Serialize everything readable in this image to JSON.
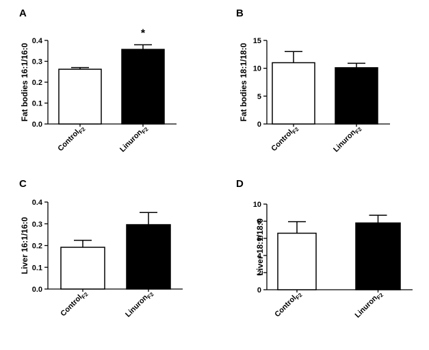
{
  "chart_data": [
    {
      "panel": "A",
      "type": "bar",
      "ylabel": "Fat bodies 16:1/16:0",
      "categories": [
        "Control",
        "Linuron"
      ],
      "category_subscript": "F2",
      "ylim": [
        0,
        0.4
      ],
      "yticks": [
        "0.0",
        "0.1",
        "0.2",
        "0.3",
        "0.4"
      ],
      "series": [
        {
          "values": [
            0.262,
            0.357
          ],
          "errors": [
            0.008,
            0.022
          ],
          "fills": [
            "#ffffff",
            "#000000"
          ]
        }
      ],
      "annotations": [
        {
          "category": "Linuron",
          "text": "*"
        }
      ]
    },
    {
      "panel": "B",
      "type": "bar",
      "ylabel": "Fat bodies 18:1/18:0",
      "categories": [
        "Control",
        "Linuron"
      ],
      "category_subscript": "F2",
      "ylim": [
        0,
        15
      ],
      "yticks": [
        "0",
        "5",
        "10",
        "15"
      ],
      "series": [
        {
          "values": [
            11.0,
            10.1
          ],
          "errors": [
            2.0,
            0.8
          ],
          "fills": [
            "#ffffff",
            "#000000"
          ]
        }
      ],
      "annotations": []
    },
    {
      "panel": "C",
      "type": "bar",
      "ylabel": "Liver 16:1/16:0",
      "categories": [
        "Control",
        "Linuron"
      ],
      "category_subscript": "F2",
      "ylim": [
        0,
        0.4
      ],
      "yticks": [
        "0.0",
        "0.1",
        "0.2",
        "0.3",
        "0.4"
      ],
      "series": [
        {
          "values": [
            0.192,
            0.296
          ],
          "errors": [
            0.032,
            0.056
          ],
          "fills": [
            "#ffffff",
            "#000000"
          ]
        }
      ],
      "annotations": []
    },
    {
      "panel": "D",
      "type": "bar",
      "ylabel": "Liver 18:1/18:0",
      "categories": [
        "Control",
        "Linuron"
      ],
      "category_subscript": "F2",
      "ylim": [
        0,
        10
      ],
      "yticks": [
        "0",
        "2",
        "4",
        "6",
        "8",
        "10"
      ],
      "series": [
        {
          "values": [
            6.6,
            7.8
          ],
          "errors": [
            1.35,
            0.9
          ],
          "fills": [
            "#ffffff",
            "#000000"
          ]
        }
      ],
      "annotations": []
    }
  ]
}
